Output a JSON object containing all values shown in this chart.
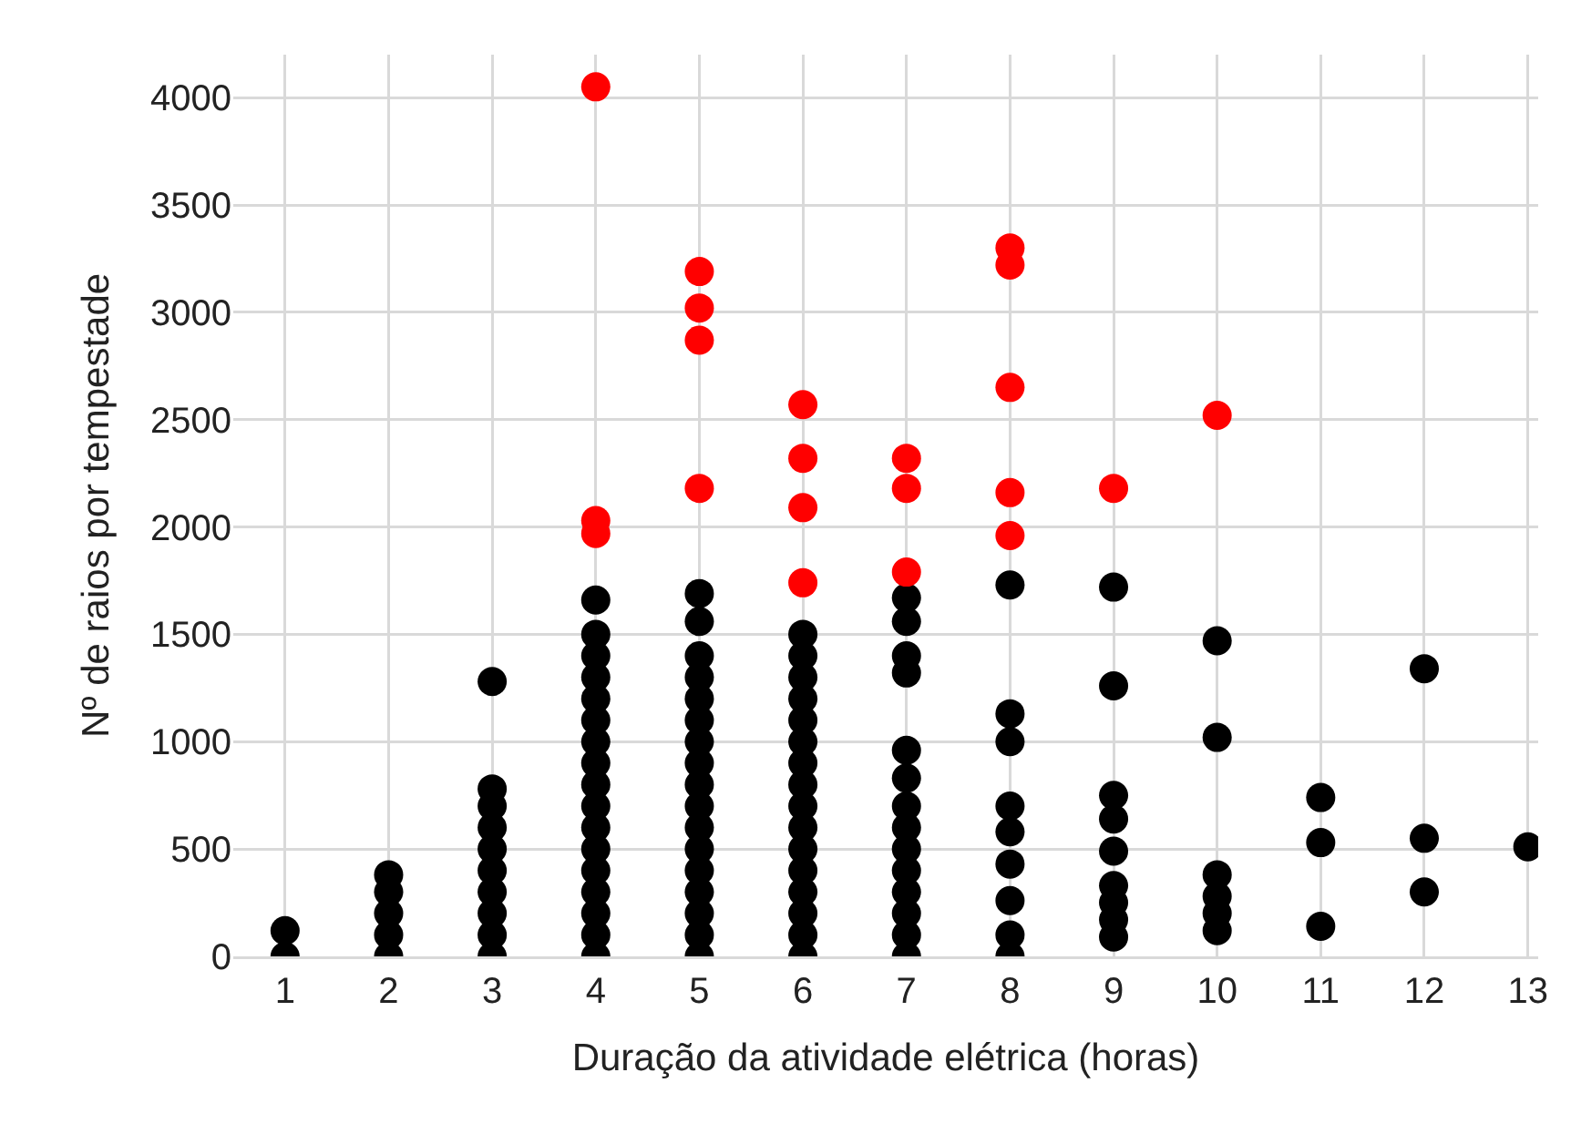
{
  "chart_data": {
    "type": "scatter",
    "xlabel": "Duração da atividade elétrica (horas)",
    "ylabel": "Nº de raios por tempestade",
    "xlim": [
      0.5,
      13.1
    ],
    "xticks": [
      1,
      2,
      3,
      4,
      5,
      6,
      7,
      8,
      9,
      10,
      11,
      12,
      13
    ],
    "ylim": [
      0,
      4200
    ],
    "yticks": [
      0,
      500,
      1000,
      1500,
      2000,
      2500,
      3000,
      3500,
      4000
    ],
    "grid": true,
    "marker": "circle",
    "series": [
      {
        "color": "#000000",
        "x": [
          1,
          1,
          2,
          2,
          2,
          2,
          2,
          3,
          3,
          3,
          3,
          3,
          3,
          3,
          3,
          3,
          3,
          4,
          4,
          4,
          4,
          4,
          4,
          4,
          4,
          4,
          4,
          4,
          4,
          4,
          4,
          4,
          4,
          4,
          5,
          5,
          5,
          5,
          5,
          5,
          5,
          5,
          5,
          5,
          5,
          5,
          5,
          5,
          5,
          5,
          5,
          6,
          6,
          6,
          6,
          6,
          6,
          6,
          6,
          6,
          6,
          6,
          6,
          6,
          6,
          6,
          6,
          7,
          7,
          7,
          7,
          7,
          7,
          7,
          7,
          7,
          7,
          7,
          7,
          7,
          7,
          8,
          8,
          8,
          8,
          8,
          8,
          8,
          8,
          8,
          9,
          9,
          9,
          9,
          9,
          9,
          9,
          9,
          9,
          10,
          10,
          10,
          10,
          10,
          10,
          11,
          11,
          11,
          12,
          12,
          12,
          13
        ],
        "values": [
          0,
          120,
          0,
          100,
          200,
          300,
          380,
          0,
          100,
          200,
          300,
          400,
          500,
          600,
          700,
          780,
          1280,
          0,
          100,
          200,
          300,
          400,
          500,
          600,
          700,
          800,
          900,
          1000,
          1100,
          1200,
          1300,
          1400,
          1500,
          1660,
          0,
          100,
          200,
          300,
          400,
          500,
          600,
          700,
          800,
          900,
          1000,
          1100,
          1200,
          1300,
          1400,
          1560,
          1690,
          0,
          100,
          200,
          300,
          400,
          500,
          600,
          700,
          800,
          900,
          1000,
          1100,
          1200,
          1300,
          1400,
          1500,
          0,
          100,
          200,
          300,
          400,
          500,
          600,
          700,
          830,
          960,
          1320,
          1400,
          1560,
          1670,
          0,
          100,
          260,
          430,
          580,
          700,
          1000,
          1130,
          1730,
          90,
          170,
          250,
          330,
          490,
          640,
          750,
          1260,
          1720,
          120,
          200,
          280,
          380,
          1020,
          1470,
          140,
          530,
          740,
          300,
          550,
          1340,
          510
        ]
      },
      {
        "color": "#ff0000",
        "x": [
          4,
          4,
          4,
          5,
          5,
          5,
          5,
          6,
          6,
          6,
          6,
          7,
          7,
          7,
          8,
          8,
          8,
          8,
          8,
          9,
          10
        ],
        "values": [
          4050,
          2030,
          1970,
          3190,
          3020,
          2870,
          2180,
          2570,
          2320,
          2090,
          1740,
          2320,
          2180,
          1790,
          3300,
          3220,
          2650,
          2160,
          1960,
          2180,
          2520
        ]
      }
    ]
  }
}
